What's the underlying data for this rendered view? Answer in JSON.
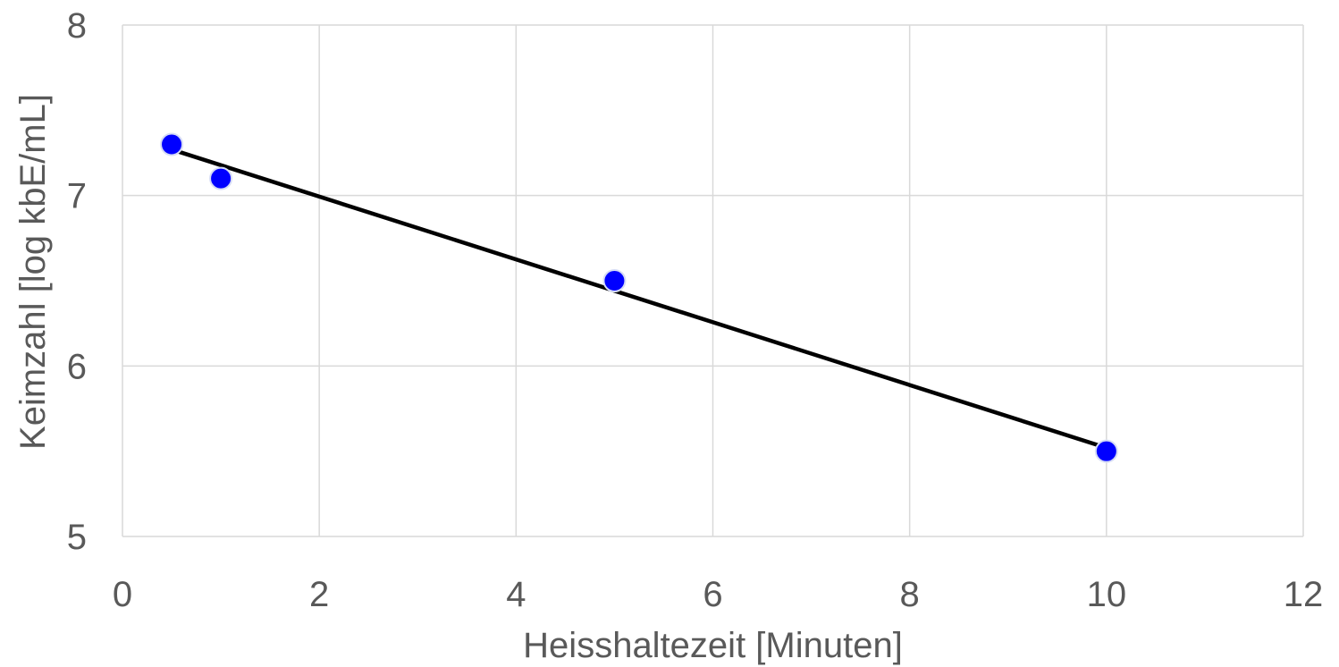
{
  "chart_data": {
    "type": "scatter",
    "xlabel": "Heisshaltezeit [Minuten]",
    "ylabel": "Keimzahl [log kbE/mL]",
    "xlim": [
      0,
      12
    ],
    "ylim": [
      5,
      8
    ],
    "x_ticks": [
      0,
      2,
      4,
      6,
      8,
      10,
      12
    ],
    "y_ticks": [
      5,
      6,
      7,
      8
    ],
    "x_tick_labels": [
      "0",
      "2",
      "4",
      "6",
      "8",
      "10",
      "12"
    ],
    "y_tick_labels": [
      "5",
      "6",
      "7",
      "8"
    ],
    "grid": true,
    "series": [
      {
        "x": [
          0.5,
          1,
          5,
          10
        ],
        "y": [
          7.3,
          7.1,
          6.5,
          5.5
        ],
        "color": "#0000FF"
      }
    ],
    "trendline": {
      "type": "linear",
      "x": [
        0.5,
        10
      ],
      "y": [
        7.27,
        5.52
      ],
      "color": "#000000"
    }
  }
}
